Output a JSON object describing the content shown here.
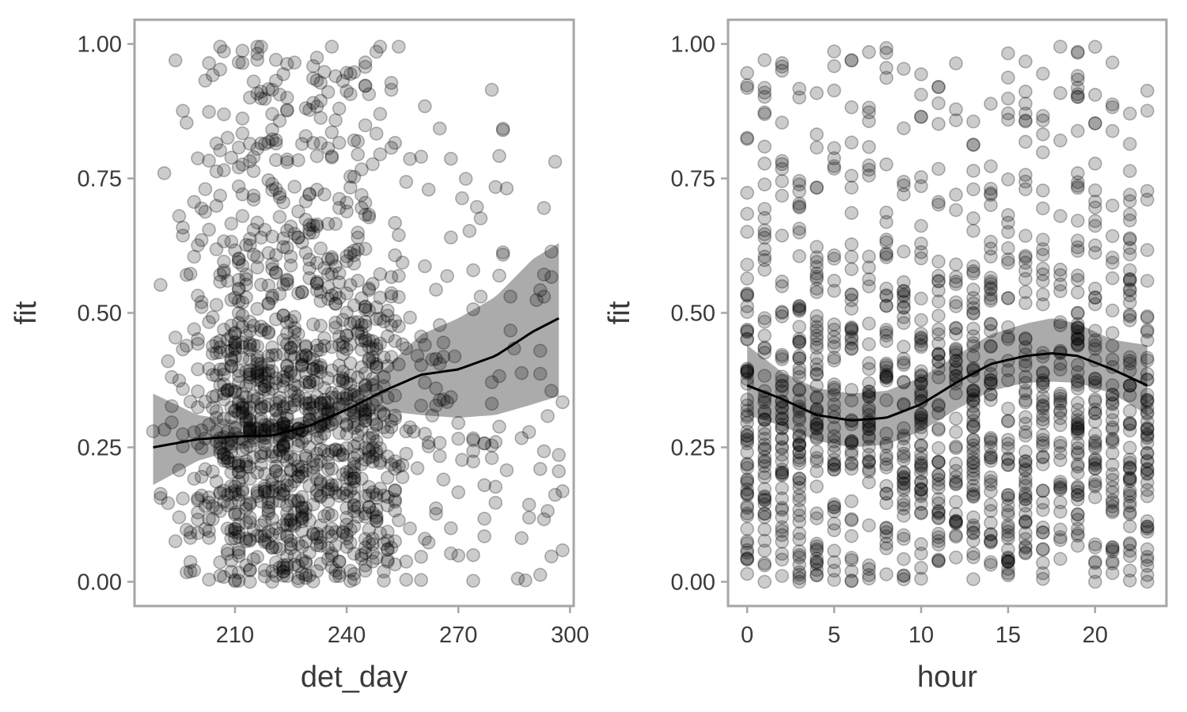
{
  "chart_data": [
    {
      "type": "scatter",
      "xlabel": "det_day",
      "ylabel": "fit",
      "xlim": [
        183,
        301
      ],
      "ylim": [
        -0.045,
        1.045
      ],
      "xticks": [
        210,
        240,
        270,
        300
      ],
      "yticks": [
        0.0,
        0.25,
        0.5,
        0.75,
        1.0
      ],
      "ytick_labels": [
        "0.00",
        "0.25",
        "0.50",
        "0.75",
        "1.00"
      ],
      "grid": false,
      "legend": "none",
      "point_color": "#000000",
      "ribbon_color": "#000000",
      "x_distribution": {
        "min": 188,
        "max": 298,
        "peak": [
          205,
          250
        ],
        "count": 1400
      },
      "smooth": {
        "x": [
          188,
          200,
          210,
          220,
          230,
          240,
          250,
          260,
          270,
          280,
          290,
          297
        ],
        "y": [
          0.25,
          0.265,
          0.27,
          0.272,
          0.29,
          0.32,
          0.355,
          0.385,
          0.395,
          0.42,
          0.465,
          0.49
        ],
        "ymin": [
          0.18,
          0.225,
          0.245,
          0.255,
          0.272,
          0.297,
          0.318,
          0.31,
          0.305,
          0.31,
          0.33,
          0.345
        ],
        "ymax": [
          0.35,
          0.31,
          0.3,
          0.295,
          0.31,
          0.345,
          0.395,
          0.46,
          0.49,
          0.53,
          0.6,
          0.63
        ]
      }
    },
    {
      "type": "scatter",
      "xlabel": "hour",
      "ylabel": "fit",
      "xlim": [
        -1.1,
        24.1
      ],
      "ylim": [
        -0.045,
        1.045
      ],
      "xticks": [
        0,
        5,
        10,
        15,
        20
      ],
      "yticks": [
        0.0,
        0.25,
        0.5,
        0.75,
        1.0
      ],
      "ytick_labels": [
        "0.00",
        "0.25",
        "0.50",
        "0.75",
        "1.00"
      ],
      "grid": false,
      "legend": "none",
      "point_color": "#000000",
      "ribbon_color": "#000000",
      "x_distribution": {
        "min": 0,
        "max": 23,
        "step": 1,
        "count": 1300
      },
      "smooth": {
        "x": [
          0,
          2,
          4,
          6,
          8,
          10,
          12,
          14,
          16,
          17.5,
          19,
          21,
          23
        ],
        "y": [
          0.365,
          0.34,
          0.31,
          0.3,
          0.305,
          0.33,
          0.37,
          0.405,
          0.42,
          0.425,
          0.42,
          0.395,
          0.365
        ],
        "ymin": [
          0.31,
          0.29,
          0.262,
          0.25,
          0.255,
          0.28,
          0.32,
          0.355,
          0.37,
          0.372,
          0.37,
          0.35,
          0.31
        ],
        "ymax": [
          0.44,
          0.39,
          0.36,
          0.35,
          0.355,
          0.38,
          0.42,
          0.46,
          0.48,
          0.49,
          0.48,
          0.45,
          0.44
        ]
      }
    }
  ]
}
